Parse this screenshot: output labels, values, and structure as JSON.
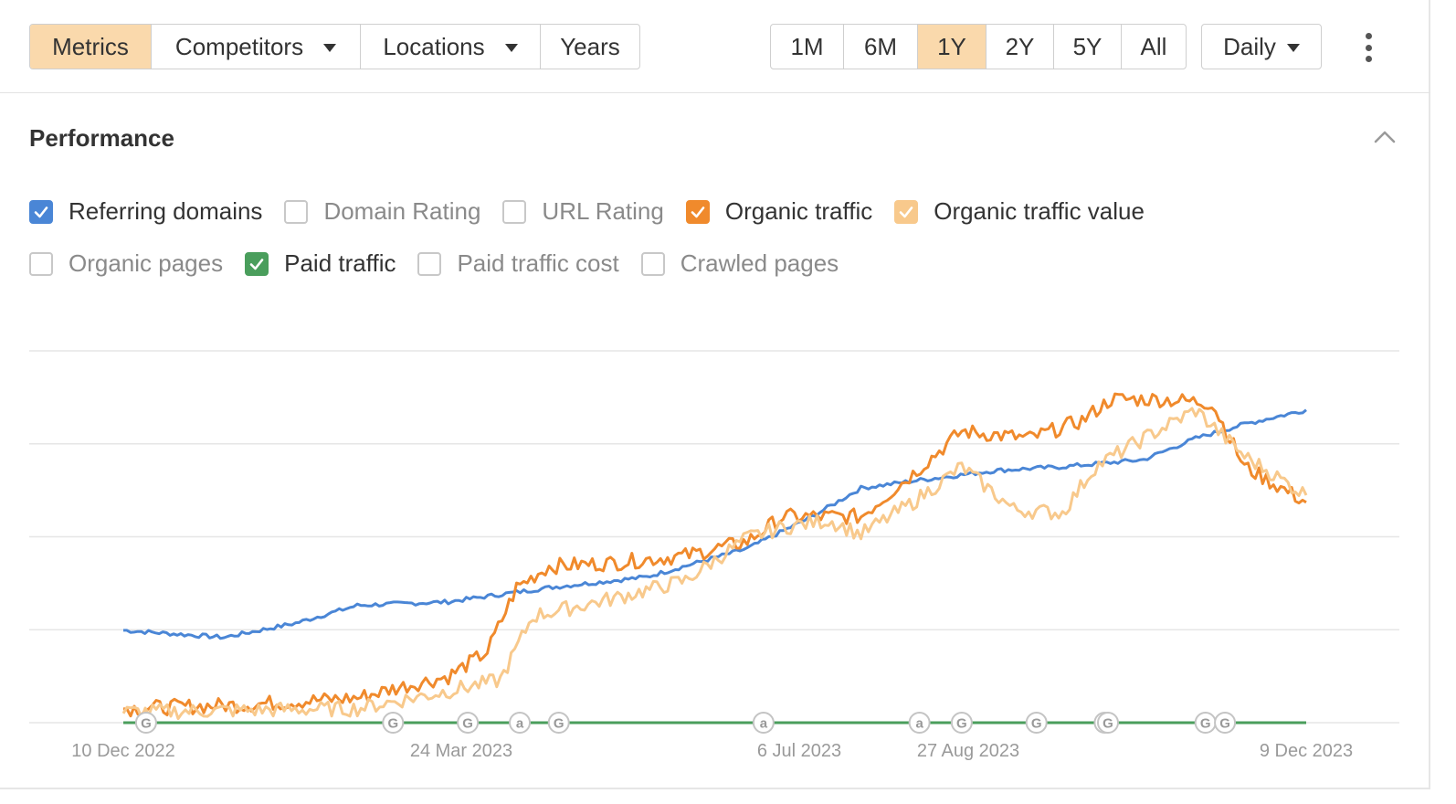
{
  "toolbar": {
    "tabs": [
      {
        "label": "Metrics",
        "active": true
      },
      {
        "label": "Competitors",
        "dropdown": true
      },
      {
        "label": "Locations",
        "dropdown": true
      },
      {
        "label": "Years"
      }
    ],
    "ranges": [
      {
        "label": "1M"
      },
      {
        "label": "6M"
      },
      {
        "label": "1Y",
        "active": true
      },
      {
        "label": "2Y"
      },
      {
        "label": "5Y"
      },
      {
        "label": "All"
      }
    ],
    "interval": "Daily",
    "accent": "#fad9ac"
  },
  "section": {
    "title": "Performance"
  },
  "metrics": [
    {
      "label": "Referring domains",
      "checked": true,
      "color": "#4a86d6"
    },
    {
      "label": "Domain Rating",
      "checked": false
    },
    {
      "label": "URL Rating",
      "checked": false
    },
    {
      "label": "Organic traffic",
      "checked": true,
      "color": "#f08a2c"
    },
    {
      "label": "Organic traffic value",
      "checked": true,
      "color": "#f8c98c"
    },
    {
      "label": "Organic pages",
      "checked": false
    },
    {
      "label": "Paid traffic",
      "checked": true,
      "color": "#4a9e5c"
    },
    {
      "label": "Paid traffic cost",
      "checked": false
    },
    {
      "label": "Crawled pages",
      "checked": false
    }
  ],
  "chart_data": {
    "type": "line",
    "x_ticks": [
      "10 Dec 2022",
      "24 Mar 2023",
      "6 Jul 2023",
      "27 Aug 2023",
      "9 Dec 2023"
    ],
    "x_range": [
      "2022-12-10",
      "2023-12-09"
    ],
    "ylim": [
      0,
      100
    ],
    "grid": true,
    "series": [
      {
        "name": "Referring domains",
        "color": "#4a86d6",
        "points": [
          [
            "2022-12-10",
            26
          ],
          [
            "2023-01-10",
            24
          ],
          [
            "2023-02-01",
            28
          ],
          [
            "2023-02-20",
            33
          ],
          [
            "2023-03-20",
            34
          ],
          [
            "2023-04-20",
            38
          ],
          [
            "2023-05-20",
            41
          ],
          [
            "2023-06-20",
            49
          ],
          [
            "2023-07-10",
            58
          ],
          [
            "2023-07-25",
            66
          ],
          [
            "2023-08-10",
            68
          ],
          [
            "2023-09-05",
            71
          ],
          [
            "2023-09-25",
            72
          ],
          [
            "2023-10-20",
            74
          ],
          [
            "2023-11-05",
            80
          ],
          [
            "2023-11-20",
            84
          ],
          [
            "2023-12-09",
            88
          ]
        ]
      },
      {
        "name": "Organic traffic",
        "color": "#f08a2c",
        "points": [
          [
            "2022-12-10",
            4
          ],
          [
            "2023-01-15",
            5
          ],
          [
            "2023-02-20",
            7
          ],
          [
            "2023-03-05",
            10
          ],
          [
            "2023-03-20",
            13
          ],
          [
            "2023-04-01",
            20
          ],
          [
            "2023-04-10",
            38
          ],
          [
            "2023-04-20",
            44
          ],
          [
            "2023-05-10",
            45
          ],
          [
            "2023-06-01",
            47
          ],
          [
            "2023-06-20",
            51
          ],
          [
            "2023-07-01",
            58
          ],
          [
            "2023-07-15",
            58
          ],
          [
            "2023-07-25",
            58
          ],
          [
            "2023-08-10",
            70
          ],
          [
            "2023-08-25",
            82
          ],
          [
            "2023-09-15",
            80
          ],
          [
            "2023-10-01",
            85
          ],
          [
            "2023-10-10",
            91
          ],
          [
            "2023-10-25",
            91
          ],
          [
            "2023-11-10",
            90
          ],
          [
            "2023-11-20",
            72
          ],
          [
            "2023-12-09",
            62
          ]
        ]
      },
      {
        "name": "Organic traffic value",
        "color": "#f8c98c",
        "points": [
          [
            "2022-12-10",
            3
          ],
          [
            "2023-02-20",
            4
          ],
          [
            "2023-03-15",
            8
          ],
          [
            "2023-04-05",
            12
          ],
          [
            "2023-04-15",
            30
          ],
          [
            "2023-05-10",
            35
          ],
          [
            "2023-06-01",
            40
          ],
          [
            "2023-06-20",
            52
          ],
          [
            "2023-07-01",
            55
          ],
          [
            "2023-07-15",
            57
          ],
          [
            "2023-07-25",
            53
          ],
          [
            "2023-08-10",
            62
          ],
          [
            "2023-08-25",
            72
          ],
          [
            "2023-09-10",
            60
          ],
          [
            "2023-09-25",
            59
          ],
          [
            "2023-10-05",
            72
          ],
          [
            "2023-10-20",
            80
          ],
          [
            "2023-11-05",
            88
          ],
          [
            "2023-11-20",
            75
          ],
          [
            "2023-12-09",
            64
          ]
        ]
      },
      {
        "name": "Paid traffic",
        "color": "#4a9e5c",
        "points": [
          [
            "2022-12-10",
            0
          ],
          [
            "2023-12-09",
            0
          ]
        ]
      }
    ],
    "annotations": [
      {
        "date": "2022-12-17",
        "label": "G"
      },
      {
        "date": "2023-03-03",
        "label": "G"
      },
      {
        "date": "2023-03-26",
        "label": "G"
      },
      {
        "date": "2023-04-11",
        "label": "a"
      },
      {
        "date": "2023-04-23",
        "label": "G"
      },
      {
        "date": "2023-06-25",
        "label": "a"
      },
      {
        "date": "2023-08-12",
        "label": "a"
      },
      {
        "date": "2023-08-25",
        "label": "G"
      },
      {
        "date": "2023-09-17",
        "label": "G"
      },
      {
        "date": "2023-10-08",
        "label": "G"
      },
      {
        "date": "2023-10-09",
        "label": "G"
      },
      {
        "date": "2023-11-08",
        "label": "G"
      },
      {
        "date": "2023-11-14",
        "label": "G"
      }
    ]
  }
}
